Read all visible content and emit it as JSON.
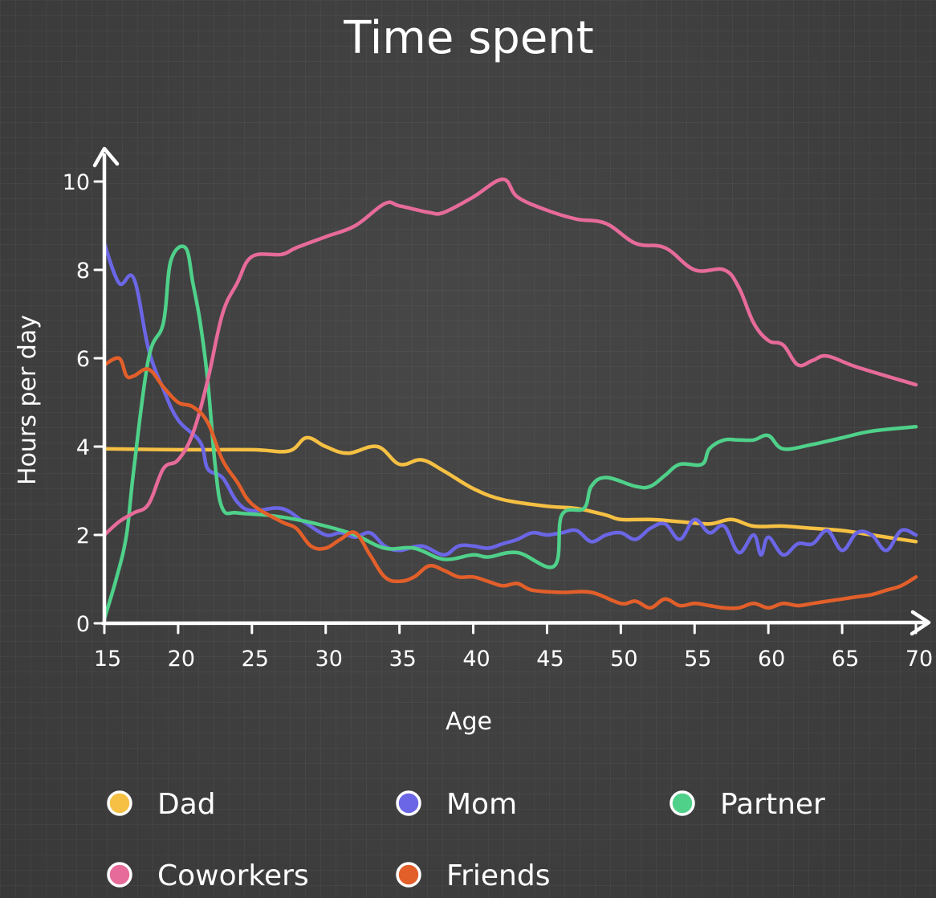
{
  "chart_data": {
    "type": "line",
    "title": "Time spent",
    "xlabel": "Age",
    "ylabel": "Hours per day",
    "xlim": [
      15,
      70
    ],
    "ylim": [
      0,
      10
    ],
    "x_ticks": [
      15,
      20,
      25,
      30,
      35,
      40,
      45,
      50,
      55,
      60,
      65,
      70
    ],
    "y_ticks": [
      0,
      2,
      4,
      6,
      8,
      10
    ],
    "grid": false,
    "legend_position": "bottom",
    "series": [
      {
        "name": "Dad",
        "color": "#f5c043",
        "points": [
          [
            15,
            3.95
          ],
          [
            20,
            3.93
          ],
          [
            25,
            3.93
          ],
          [
            27.5,
            3.9
          ],
          [
            28.7,
            4.2
          ],
          [
            30,
            4.0
          ],
          [
            31.5,
            3.85
          ],
          [
            33.5,
            4.0
          ],
          [
            35,
            3.6
          ],
          [
            36.5,
            3.7
          ],
          [
            38,
            3.45
          ],
          [
            40,
            3.05
          ],
          [
            42,
            2.8
          ],
          [
            45,
            2.65
          ],
          [
            47,
            2.6
          ],
          [
            49,
            2.45
          ],
          [
            50,
            2.35
          ],
          [
            52,
            2.35
          ],
          [
            54,
            2.3
          ],
          [
            56,
            2.25
          ],
          [
            57.5,
            2.35
          ],
          [
            59,
            2.2
          ],
          [
            61,
            2.2
          ],
          [
            63,
            2.15
          ],
          [
            65,
            2.1
          ],
          [
            67,
            2.0
          ],
          [
            70,
            1.85
          ]
        ]
      },
      {
        "name": "Mom",
        "color": "#6b66e6",
        "points": [
          [
            15,
            8.6
          ],
          [
            16,
            7.7
          ],
          [
            17,
            7.8
          ],
          [
            18,
            6.2
          ],
          [
            19,
            5.3
          ],
          [
            20,
            4.6
          ],
          [
            21.5,
            4.1
          ],
          [
            22,
            3.5
          ],
          [
            23,
            3.3
          ],
          [
            24,
            2.75
          ],
          [
            25,
            2.55
          ],
          [
            27,
            2.6
          ],
          [
            28.5,
            2.3
          ],
          [
            30,
            2.0
          ],
          [
            31,
            2.05
          ],
          [
            32,
            1.95
          ],
          [
            33,
            2.05
          ],
          [
            34,
            1.75
          ],
          [
            35,
            1.65
          ],
          [
            36.5,
            1.75
          ],
          [
            38,
            1.55
          ],
          [
            39,
            1.75
          ],
          [
            40,
            1.75
          ],
          [
            41,
            1.7
          ],
          [
            42,
            1.8
          ],
          [
            43,
            1.9
          ],
          [
            44,
            2.05
          ],
          [
            45,
            2.0
          ],
          [
            46,
            2.05
          ],
          [
            47,
            2.1
          ],
          [
            48,
            1.85
          ],
          [
            49,
            2.0
          ],
          [
            50,
            2.05
          ],
          [
            51,
            1.9
          ],
          [
            52,
            2.15
          ],
          [
            53,
            2.25
          ],
          [
            54,
            1.9
          ],
          [
            55,
            2.35
          ],
          [
            56,
            2.05
          ],
          [
            57,
            2.2
          ],
          [
            58,
            1.6
          ],
          [
            59,
            2.0
          ],
          [
            59.5,
            1.55
          ],
          [
            60,
            1.95
          ],
          [
            61,
            1.55
          ],
          [
            62,
            1.8
          ],
          [
            63,
            1.8
          ],
          [
            64,
            2.1
          ],
          [
            65,
            1.65
          ],
          [
            66,
            2.05
          ],
          [
            67,
            2.0
          ],
          [
            68,
            1.65
          ],
          [
            69,
            2.1
          ],
          [
            70,
            2.0
          ]
        ]
      },
      {
        "name": "Partner",
        "color": "#4fd18a",
        "points": [
          [
            15,
            0.1
          ],
          [
            15.8,
            1.0
          ],
          [
            16.5,
            2.0
          ],
          [
            17,
            3.5
          ],
          [
            18,
            6.0
          ],
          [
            19,
            6.8
          ],
          [
            19.5,
            8.2
          ],
          [
            20.5,
            8.5
          ],
          [
            21,
            7.7
          ],
          [
            21.5,
            6.8
          ],
          [
            22,
            5.5
          ],
          [
            22.5,
            3.6
          ],
          [
            23,
            2.6
          ],
          [
            24,
            2.5
          ],
          [
            26,
            2.45
          ],
          [
            28,
            2.35
          ],
          [
            30,
            2.2
          ],
          [
            32,
            2.0
          ],
          [
            34,
            1.7
          ],
          [
            36,
            1.7
          ],
          [
            38,
            1.45
          ],
          [
            40,
            1.55
          ],
          [
            41,
            1.5
          ],
          [
            43,
            1.6
          ],
          [
            45.5,
            1.3
          ],
          [
            46,
            2.45
          ],
          [
            47.5,
            2.6
          ],
          [
            48,
            3.1
          ],
          [
            49,
            3.3
          ],
          [
            51,
            3.1
          ],
          [
            52,
            3.1
          ],
          [
            53,
            3.35
          ],
          [
            54,
            3.6
          ],
          [
            55.5,
            3.6
          ],
          [
            56,
            3.95
          ],
          [
            57,
            4.15
          ],
          [
            58,
            4.15
          ],
          [
            59,
            4.15
          ],
          [
            60,
            4.25
          ],
          [
            61,
            3.95
          ],
          [
            63,
            4.05
          ],
          [
            65,
            4.2
          ],
          [
            67,
            4.35
          ],
          [
            70,
            4.45
          ]
        ]
      },
      {
        "name": "Coworkers",
        "color": "#e76b9a",
        "points": [
          [
            15,
            2.0
          ],
          [
            16,
            2.3
          ],
          [
            17,
            2.5
          ],
          [
            18,
            2.7
          ],
          [
            19,
            3.5
          ],
          [
            20,
            3.7
          ],
          [
            21,
            4.3
          ],
          [
            22,
            5.5
          ],
          [
            23,
            7.0
          ],
          [
            24,
            7.7
          ],
          [
            25,
            8.3
          ],
          [
            27,
            8.35
          ],
          [
            28,
            8.5
          ],
          [
            30,
            8.75
          ],
          [
            32,
            9.0
          ],
          [
            34,
            9.5
          ],
          [
            35,
            9.45
          ],
          [
            37,
            9.3
          ],
          [
            38,
            9.3
          ],
          [
            40,
            9.65
          ],
          [
            42,
            10.05
          ],
          [
            43,
            9.65
          ],
          [
            45,
            9.35
          ],
          [
            47,
            9.15
          ],
          [
            49,
            9.05
          ],
          [
            51,
            8.6
          ],
          [
            53,
            8.5
          ],
          [
            55,
            8.0
          ],
          [
            57,
            8.0
          ],
          [
            58,
            7.6
          ],
          [
            59,
            6.8
          ],
          [
            60,
            6.4
          ],
          [
            61,
            6.3
          ],
          [
            62,
            5.85
          ],
          [
            63,
            5.95
          ],
          [
            64,
            6.05
          ],
          [
            66,
            5.8
          ],
          [
            70,
            5.4
          ]
        ]
      },
      {
        "name": "Friends",
        "color": "#e35f2a",
        "points": [
          [
            15,
            5.85
          ],
          [
            16,
            6.0
          ],
          [
            16.5,
            5.6
          ],
          [
            17,
            5.6
          ],
          [
            18,
            5.75
          ],
          [
            19,
            5.35
          ],
          [
            20,
            5.0
          ],
          [
            21,
            4.9
          ],
          [
            22,
            4.55
          ],
          [
            23,
            3.7
          ],
          [
            24,
            3.2
          ],
          [
            25,
            2.7
          ],
          [
            27,
            2.3
          ],
          [
            28,
            2.15
          ],
          [
            29,
            1.75
          ],
          [
            30,
            1.7
          ],
          [
            31,
            1.9
          ],
          [
            32,
            2.05
          ],
          [
            33,
            1.55
          ],
          [
            34,
            1.05
          ],
          [
            35,
            0.95
          ],
          [
            36,
            1.05
          ],
          [
            37,
            1.3
          ],
          [
            38,
            1.2
          ],
          [
            39,
            1.05
          ],
          [
            40,
            1.05
          ],
          [
            41,
            0.95
          ],
          [
            42,
            0.85
          ],
          [
            43,
            0.9
          ],
          [
            44,
            0.75
          ],
          [
            46,
            0.7
          ],
          [
            48,
            0.7
          ],
          [
            50,
            0.45
          ],
          [
            51,
            0.5
          ],
          [
            52,
            0.35
          ],
          [
            53,
            0.55
          ],
          [
            54,
            0.4
          ],
          [
            55,
            0.45
          ],
          [
            56,
            0.4
          ],
          [
            57,
            0.35
          ],
          [
            58,
            0.35
          ],
          [
            59,
            0.45
          ],
          [
            60,
            0.35
          ],
          [
            61,
            0.45
          ],
          [
            62,
            0.4
          ],
          [
            63,
            0.45
          ],
          [
            64,
            0.5
          ],
          [
            65,
            0.55
          ],
          [
            66,
            0.6
          ],
          [
            67,
            0.65
          ],
          [
            68,
            0.75
          ],
          [
            69,
            0.85
          ],
          [
            70,
            1.05
          ]
        ]
      }
    ]
  }
}
